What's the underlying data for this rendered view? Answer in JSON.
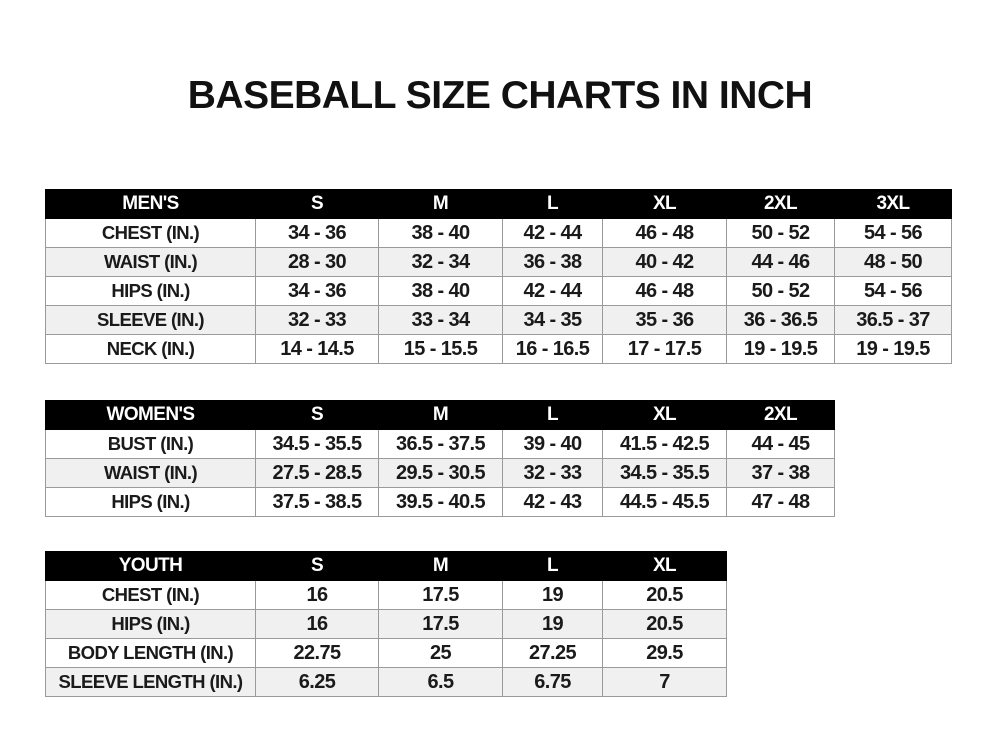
{
  "title": "BASEBALL SIZE CHARTS IN INCH",
  "colors": {
    "header_bg": "#000000",
    "header_text": "#ffffff",
    "alt_row_bg": "#f0f0f0",
    "border": "#9a9a9a"
  },
  "tables": [
    {
      "id": "men",
      "header": [
        "MEN'S",
        "S",
        "M",
        "L",
        "XL",
        "2XL",
        "3XL"
      ],
      "rows": [
        [
          "CHEST (IN.)",
          "34 - 36",
          "38 - 40",
          "42 - 44",
          "46 - 48",
          "50 - 52",
          "54 - 56"
        ],
        [
          "WAIST (IN.)",
          "28 - 30",
          "32 - 34",
          "36 - 38",
          "40 - 42",
          "44 - 46",
          "48 - 50"
        ],
        [
          "HIPS (IN.)",
          "34 - 36",
          "38 - 40",
          "42 - 44",
          "46 - 48",
          "50 - 52",
          "54 - 56"
        ],
        [
          "SLEEVE (IN.)",
          "32 - 33",
          "33 - 34",
          "34 - 35",
          "35 - 36",
          "36 - 36.5",
          "36.5 - 37"
        ],
        [
          "NECK (IN.)",
          "14 - 14.5",
          "15 - 15.5",
          "16 - 16.5",
          "17 - 17.5",
          "19 - 19.5",
          "19 - 19.5"
        ]
      ]
    },
    {
      "id": "women",
      "header": [
        "WOMEN'S",
        "S",
        "M",
        "L",
        "XL",
        "2XL"
      ],
      "rows": [
        [
          "BUST (IN.)",
          "34.5 - 35.5",
          "36.5 - 37.5",
          "39 - 40",
          "41.5 - 42.5",
          "44 - 45"
        ],
        [
          "WAIST (IN.)",
          "27.5 - 28.5",
          "29.5 - 30.5",
          "32 - 33",
          "34.5 - 35.5",
          "37 - 38"
        ],
        [
          "HIPS (IN.)",
          "37.5 - 38.5",
          "39.5 - 40.5",
          "42 - 43",
          "44.5 - 45.5",
          "47 - 48"
        ]
      ]
    },
    {
      "id": "youth",
      "header": [
        "YOUTH",
        "S",
        "M",
        "L",
        "XL"
      ],
      "rows": [
        [
          "CHEST (IN.)",
          "16",
          "17.5",
          "19",
          "20.5"
        ],
        [
          "HIPS (IN.)",
          "16",
          "17.5",
          "19",
          "20.5"
        ],
        [
          "BODY LENGTH (IN.)",
          "22.75",
          "25",
          "27.25",
          "29.5"
        ],
        [
          "SLEEVE LENGTH (IN.)",
          "6.25",
          "6.5",
          "6.75",
          "7"
        ]
      ]
    }
  ]
}
